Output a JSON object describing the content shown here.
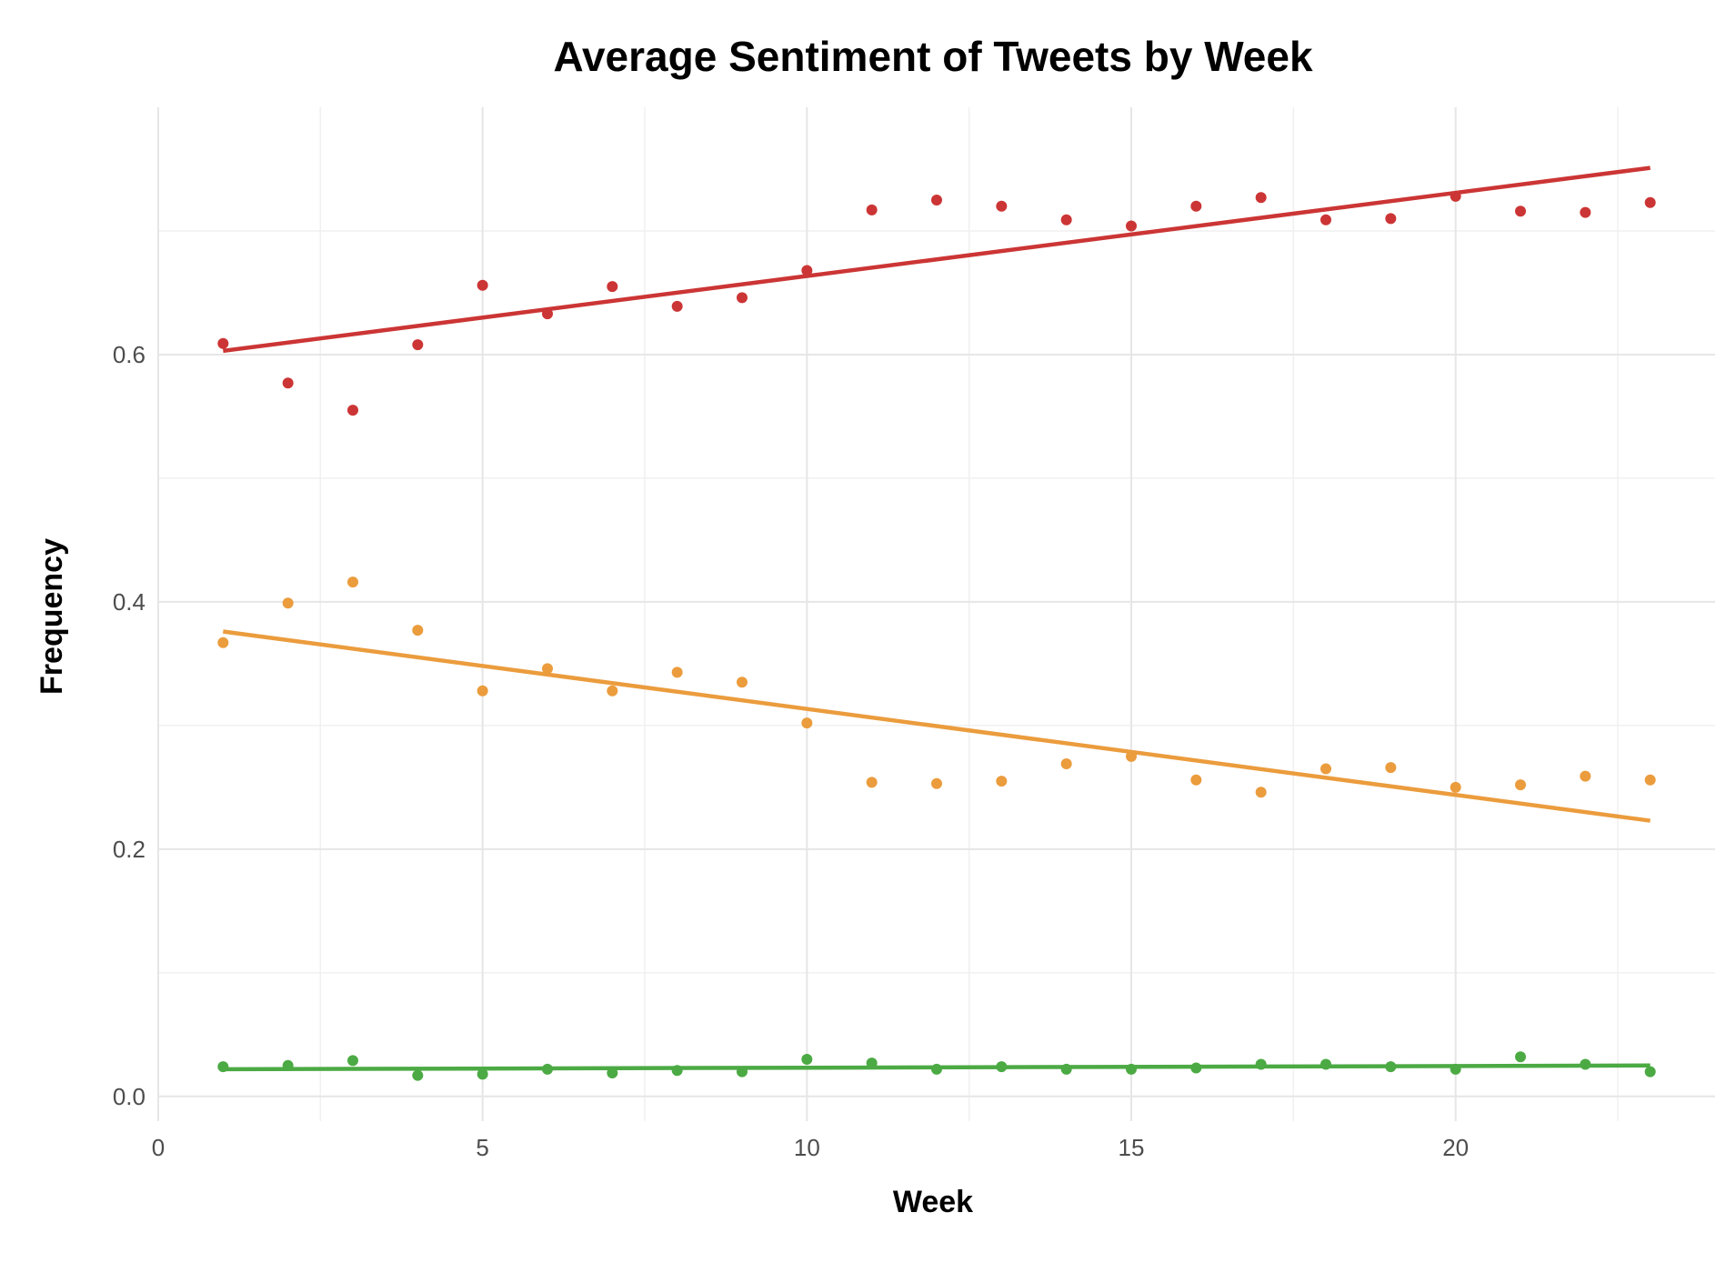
{
  "chart_data": {
    "type": "scatter",
    "title": "Average Sentiment of Tweets by Week",
    "xlabel": "Week",
    "ylabel": "Frequency",
    "xlim": [
      0,
      24
    ],
    "ylim": [
      -0.02,
      0.8
    ],
    "x_ticks": [
      0,
      5,
      10,
      15,
      20
    ],
    "y_ticks": [
      0.0,
      0.2,
      0.4,
      0.6
    ],
    "x_tick_labels": [
      "0",
      "5",
      "10",
      "15",
      "20"
    ],
    "y_tick_labels": [
      "0.0",
      "0.2",
      "0.4",
      "0.6"
    ],
    "grid": true,
    "legend": "none",
    "x": [
      1,
      2,
      3,
      4,
      5,
      6,
      7,
      8,
      9,
      10,
      11,
      12,
      13,
      14,
      15,
      16,
      17,
      18,
      19,
      20,
      21,
      22,
      23
    ],
    "series": [
      {
        "color": "#cc3535",
        "values": [
          0.609,
          0.577,
          0.555,
          0.608,
          0.656,
          0.633,
          0.655,
          0.639,
          0.646,
          0.668,
          0.717,
          0.725,
          0.72,
          0.709,
          0.704,
          0.72,
          0.727,
          0.709,
          0.71,
          0.728,
          0.716,
          0.715,
          0.723
        ],
        "trend": [
          0.603,
          0.751
        ]
      },
      {
        "color": "#eb9c3d",
        "values": [
          0.367,
          0.399,
          0.416,
          0.377,
          0.328,
          0.346,
          0.328,
          0.343,
          0.335,
          0.302,
          0.254,
          0.253,
          0.255,
          0.269,
          0.275,
          0.256,
          0.246,
          0.265,
          0.266,
          0.25,
          0.252,
          0.259,
          0.256
        ],
        "trend": [
          0.376,
          0.223
        ]
      },
      {
        "color": "#4caa44",
        "values": [
          0.024,
          0.025,
          0.029,
          0.017,
          0.018,
          0.022,
          0.019,
          0.021,
          0.02,
          0.03,
          0.027,
          0.022,
          0.024,
          0.022,
          0.022,
          0.023,
          0.026,
          0.026,
          0.024,
          0.022,
          0.032,
          0.026,
          0.02
        ],
        "trend": [
          0.022,
          0.025
        ]
      }
    ]
  }
}
